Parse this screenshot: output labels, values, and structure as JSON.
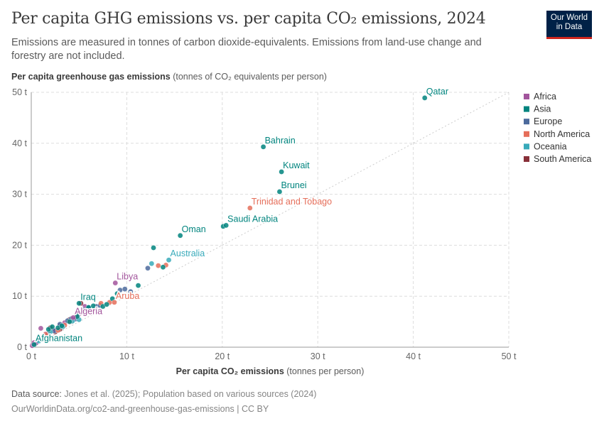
{
  "header": {
    "title": "Per capita GHG emissions vs. per capita CO₂ emissions, 2024",
    "subtitle": "Emissions are measured in tonnes of carbon dioxide-equivalents. Emissions from land-use change and forestry are not included.",
    "logo_text": "Our World in Data"
  },
  "footer": {
    "source_label": "Data source:",
    "source_text": "Jones et al. (2025); Population based on various sources (2024)",
    "url": "OurWorldinData.org/co2-and-greenhouse-gas-emissions | CC BY"
  },
  "chart_data": {
    "type": "scatter",
    "title": "Per capita GHG emissions vs. per capita CO₂ emissions, 2024",
    "ylabel_bold": "Per capita greenhouse gas emissions",
    "ylabel_unit": "(tonnes of CO₂ equivalents per person)",
    "xlabel_bold": "Per capita CO₂ emissions",
    "xlabel_unit": "(tonnes per person)",
    "xlim": [
      0,
      50
    ],
    "ylim": [
      0,
      50
    ],
    "x_ticks": [
      "0 t",
      "10 t",
      "20 t",
      "30 t",
      "40 t",
      "50 t"
    ],
    "y_ticks": [
      "0 t",
      "10 t",
      "20 t",
      "30 t",
      "40 t",
      "50 t"
    ],
    "grid": true,
    "reference_line": "y = x (dotted)",
    "legend_position": "right",
    "legend": [
      {
        "name": "Africa",
        "color": "#a2559c"
      },
      {
        "name": "Asia",
        "color": "#00847e"
      },
      {
        "name": "Europe",
        "color": "#4c6a9c"
      },
      {
        "name": "North America",
        "color": "#e56e5a"
      },
      {
        "name": "Oceania",
        "color": "#38aaba"
      },
      {
        "name": "South America",
        "color": "#883039"
      }
    ],
    "points": [
      {
        "x": 41.2,
        "y": 48.9,
        "region": "Asia",
        "label": "Qatar"
      },
      {
        "x": 24.3,
        "y": 39.3,
        "region": "Asia",
        "label": "Bahrain"
      },
      {
        "x": 26.2,
        "y": 34.4,
        "region": "Asia",
        "label": "Kuwait"
      },
      {
        "x": 26.0,
        "y": 30.5,
        "region": "Asia",
        "label": "Brunei"
      },
      {
        "x": 22.9,
        "y": 27.3,
        "region": "North America",
        "label": "Trinidad and Tobago"
      },
      {
        "x": 20.4,
        "y": 23.9,
        "region": "Asia",
        "label": "Saudi Arabia"
      },
      {
        "x": 15.6,
        "y": 21.9,
        "region": "Asia",
        "label": "Oman"
      },
      {
        "x": 14.4,
        "y": 17.1,
        "region": "Oceania",
        "label": "Australia"
      },
      {
        "x": 8.8,
        "y": 12.6,
        "region": "Africa",
        "label": "Libya"
      },
      {
        "x": 5.0,
        "y": 8.6,
        "region": "Asia",
        "label": "Iraq"
      },
      {
        "x": 8.7,
        "y": 8.8,
        "region": "North America",
        "label": "Aruba"
      },
      {
        "x": 4.4,
        "y": 5.8,
        "region": "Africa",
        "label": "Algeria"
      },
      {
        "x": 0.3,
        "y": 0.5,
        "region": "Asia",
        "label": "Afghanistan"
      },
      {
        "x": 20.1,
        "y": 23.7,
        "region": "Asia"
      },
      {
        "x": 12.8,
        "y": 19.5,
        "region": "Asia"
      },
      {
        "x": 13.8,
        "y": 15.7,
        "region": "Asia"
      },
      {
        "x": 11.2,
        "y": 12.1,
        "region": "Asia"
      },
      {
        "x": 9.0,
        "y": 10.5,
        "region": "Asia"
      },
      {
        "x": 8.5,
        "y": 9.5,
        "region": "Asia"
      },
      {
        "x": 7.9,
        "y": 8.4,
        "region": "Asia"
      },
      {
        "x": 7.5,
        "y": 8.0,
        "region": "Asia"
      },
      {
        "x": 6.5,
        "y": 8.1,
        "region": "Asia"
      },
      {
        "x": 6.0,
        "y": 7.8,
        "region": "Asia"
      },
      {
        "x": 4.8,
        "y": 6.0,
        "region": "Asia"
      },
      {
        "x": 4.0,
        "y": 5.0,
        "region": "Asia"
      },
      {
        "x": 3.2,
        "y": 4.2,
        "region": "Asia"
      },
      {
        "x": 2.8,
        "y": 3.8,
        "region": "Asia"
      },
      {
        "x": 2.2,
        "y": 4.0,
        "region": "Asia"
      },
      {
        "x": 1.8,
        "y": 3.5,
        "region": "Asia"
      },
      {
        "x": 12.6,
        "y": 16.4,
        "region": "Oceania"
      },
      {
        "x": 5.0,
        "y": 5.4,
        "region": "Oceania"
      },
      {
        "x": 4.3,
        "y": 5.1,
        "region": "Oceania"
      },
      {
        "x": 3.3,
        "y": 4.0,
        "region": "Oceania"
      },
      {
        "x": 2.0,
        "y": 3.0,
        "region": "Oceania"
      },
      {
        "x": 0.8,
        "y": 1.2,
        "region": "Oceania"
      },
      {
        "x": 13.3,
        "y": 16.0,
        "region": "North America"
      },
      {
        "x": 14.1,
        "y": 16.1,
        "region": "North America"
      },
      {
        "x": 8.2,
        "y": 8.8,
        "region": "North America"
      },
      {
        "x": 7.3,
        "y": 8.6,
        "region": "North America"
      },
      {
        "x": 5.2,
        "y": 6.7,
        "region": "North America"
      },
      {
        "x": 4.1,
        "y": 5.0,
        "region": "North America"
      },
      {
        "x": 3.5,
        "y": 4.3,
        "region": "North America"
      },
      {
        "x": 2.8,
        "y": 3.3,
        "region": "North America"
      },
      {
        "x": 1.5,
        "y": 2.5,
        "region": "North America"
      },
      {
        "x": 12.2,
        "y": 15.5,
        "region": "Europe"
      },
      {
        "x": 10.4,
        "y": 10.9,
        "region": "Europe"
      },
      {
        "x": 9.8,
        "y": 11.4,
        "region": "Europe"
      },
      {
        "x": 9.3,
        "y": 11.2,
        "region": "Europe"
      },
      {
        "x": 7.2,
        "y": 8.2,
        "region": "Europe"
      },
      {
        "x": 6.8,
        "y": 8.0,
        "region": "Europe"
      },
      {
        "x": 6.0,
        "y": 7.8,
        "region": "Europe"
      },
      {
        "x": 5.5,
        "y": 7.3,
        "region": "Europe"
      },
      {
        "x": 5.0,
        "y": 6.5,
        "region": "Europe"
      },
      {
        "x": 4.6,
        "y": 5.5,
        "region": "Europe"
      },
      {
        "x": 4.2,
        "y": 5.6,
        "region": "Europe"
      },
      {
        "x": 3.8,
        "y": 5.2,
        "region": "Europe"
      },
      {
        "x": 3.0,
        "y": 4.5,
        "region": "Europe"
      },
      {
        "x": 2.4,
        "y": 3.2,
        "region": "Europe"
      },
      {
        "x": 5.6,
        "y": 8.0,
        "region": "Africa"
      },
      {
        "x": 3.5,
        "y": 4.8,
        "region": "Africa"
      },
      {
        "x": 3.0,
        "y": 4.3,
        "region": "Africa"
      },
      {
        "x": 2.5,
        "y": 3.3,
        "region": "Africa"
      },
      {
        "x": 1.5,
        "y": 2.6,
        "region": "Africa"
      },
      {
        "x": 1.2,
        "y": 2.0,
        "region": "Africa"
      },
      {
        "x": 1.0,
        "y": 3.7,
        "region": "Africa"
      },
      {
        "x": 0.5,
        "y": 0.8,
        "region": "Africa"
      },
      {
        "x": 0.3,
        "y": 0.9,
        "region": "Africa"
      },
      {
        "x": 0.2,
        "y": 0.6,
        "region": "Africa"
      },
      {
        "x": 0.1,
        "y": 0.3,
        "region": "Africa"
      },
      {
        "x": 5.2,
        "y": 8.6,
        "region": "South America"
      },
      {
        "x": 4.8,
        "y": 6.2,
        "region": "South America"
      },
      {
        "x": 4.0,
        "y": 5.4,
        "region": "South America"
      },
      {
        "x": 3.0,
        "y": 3.5,
        "region": "South America"
      },
      {
        "x": 2.5,
        "y": 3.0,
        "region": "South America"
      },
      {
        "x": 2.0,
        "y": 3.8,
        "region": "South America"
      },
      {
        "x": 1.8,
        "y": 2.7,
        "region": "South America"
      },
      {
        "x": 1.2,
        "y": 1.8,
        "region": "South America"
      }
    ]
  }
}
